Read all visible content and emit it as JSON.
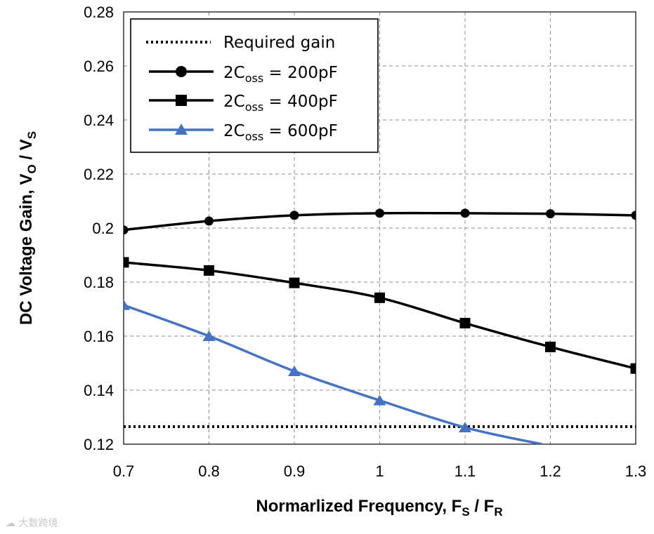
{
  "chart_data": {
    "type": "line",
    "xlabel_main": "Normarlized Frequency, F",
    "xlabel_sub1": "S",
    "xlabel_sep": " / F",
    "xlabel_sub2": "R",
    "ylabel_main": "DC Voltage Gain, V",
    "ylabel_sub1": "O",
    "ylabel_sep": " / V",
    "ylabel_sub2": "S",
    "xlim": [
      0.7,
      1.3
    ],
    "ylim": [
      0.12,
      0.28
    ],
    "x_ticks": [
      "0.7",
      "0.8",
      "0.9",
      "1",
      "1.1",
      "1.2",
      "1.3"
    ],
    "y_ticks": [
      "0.12",
      "0.14",
      "0.16",
      "0.18",
      "0.2",
      "0.22",
      "0.24",
      "0.26",
      "0.28"
    ],
    "grid": "dashed",
    "legend_position": "top-left",
    "x": [
      0.7,
      0.8,
      0.9,
      1.0,
      1.1,
      1.2,
      1.3
    ],
    "required_gain": 0.1265,
    "series": [
      {
        "name": "Required gain",
        "label": "Required gain",
        "marker": "none",
        "style": "dotted",
        "color": "#000000",
        "x": [
          0.7,
          1.3
        ],
        "values": [
          0.1265,
          0.1265
        ]
      },
      {
        "name": "2Coss = 200pF",
        "pre": "2C",
        "sub": "oss",
        "post": " = 200pF",
        "marker": "circle",
        "style": "solid",
        "color": "#000000",
        "x": [
          0.7,
          0.8,
          0.9,
          1.0,
          1.1,
          1.2,
          1.3
        ],
        "values": [
          0.1993,
          0.2026,
          0.2047,
          0.2055,
          0.2055,
          0.2053,
          0.2047
        ]
      },
      {
        "name": "2Coss = 400pF",
        "pre": "2C",
        "sub": "oss",
        "post": " = 400pF",
        "marker": "square",
        "style": "solid",
        "color": "#000000",
        "x": [
          0.7,
          0.8,
          0.9,
          1.0,
          1.1,
          1.2,
          1.3
        ],
        "values": [
          0.1873,
          0.1843,
          0.1797,
          0.1742,
          0.1648,
          0.156,
          0.148
        ]
      },
      {
        "name": "2Coss = 600pF",
        "pre": "2C",
        "sub": "oss",
        "post": " = 600pF",
        "marker": "triangle",
        "style": "solid",
        "color": "#4472C4",
        "x": [
          0.7,
          0.8,
          0.9,
          1.0,
          1.1,
          1.19
        ],
        "values": [
          0.1715,
          0.16,
          0.147,
          0.1362,
          0.1262,
          0.12
        ]
      }
    ]
  },
  "watermark": "大数跨境",
  "watermark_icon": "brand-logo-icon"
}
